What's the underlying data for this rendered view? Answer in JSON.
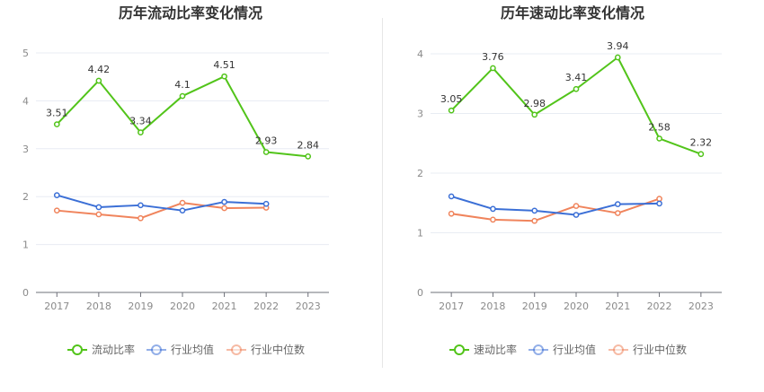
{
  "charts": {
    "left": {
      "title": "历年流动比率变化情况",
      "legend": [
        "流动比率",
        "行业均值",
        "行业中位数"
      ]
    },
    "right": {
      "title": "历年速动比率变化情况",
      "legend": [
        "速动比率",
        "行业均值",
        "行业中位数"
      ]
    }
  },
  "colors": {
    "main": "#52c41a",
    "avg": "#3b6fd6",
    "median": "#f0845c",
    "axis": "#8a8a8a",
    "grid": "#e8ecf3"
  },
  "chart_data": [
    {
      "type": "line",
      "title": "历年流动比率变化情况",
      "x": [
        "2017",
        "2018",
        "2019",
        "2020",
        "2021",
        "2022",
        "2023"
      ],
      "ylim": [
        0,
        5
      ],
      "yticks": [
        0,
        1,
        2,
        3,
        4,
        5
      ],
      "grid": true,
      "legend_position": "bottom",
      "series": [
        {
          "name": "流动比率",
          "values": [
            3.51,
            4.42,
            3.34,
            4.1,
            4.51,
            2.93,
            2.84
          ],
          "labels": [
            "3.51",
            "4.42",
            "3.34",
            "4.1",
            "4.51",
            "2.93",
            "2.84"
          ]
        },
        {
          "name": "行业均值",
          "values": [
            2.03,
            1.78,
            1.82,
            1.71,
            1.89,
            1.85,
            null
          ]
        },
        {
          "name": "行业中位数",
          "values": [
            1.71,
            1.63,
            1.55,
            1.87,
            1.76,
            1.77,
            null
          ]
        }
      ]
    },
    {
      "type": "line",
      "title": "历年速动比率变化情况",
      "x": [
        "2017",
        "2018",
        "2019",
        "2020",
        "2021",
        "2022",
        "2023"
      ],
      "ylim": [
        0,
        4
      ],
      "yticks": [
        0,
        1,
        2,
        3,
        4
      ],
      "grid": true,
      "legend_position": "bottom",
      "series": [
        {
          "name": "速动比率",
          "values": [
            3.05,
            3.76,
            2.98,
            3.41,
            3.94,
            2.58,
            2.32
          ],
          "labels": [
            "3.05",
            "3.76",
            "2.98",
            "3.41",
            "3.94",
            "2.58",
            "2.32"
          ]
        },
        {
          "name": "行业均值",
          "values": [
            1.61,
            1.4,
            1.37,
            1.3,
            1.48,
            1.49,
            null
          ]
        },
        {
          "name": "行业中位数",
          "values": [
            1.32,
            1.22,
            1.2,
            1.45,
            1.33,
            1.57,
            null
          ]
        }
      ]
    }
  ]
}
